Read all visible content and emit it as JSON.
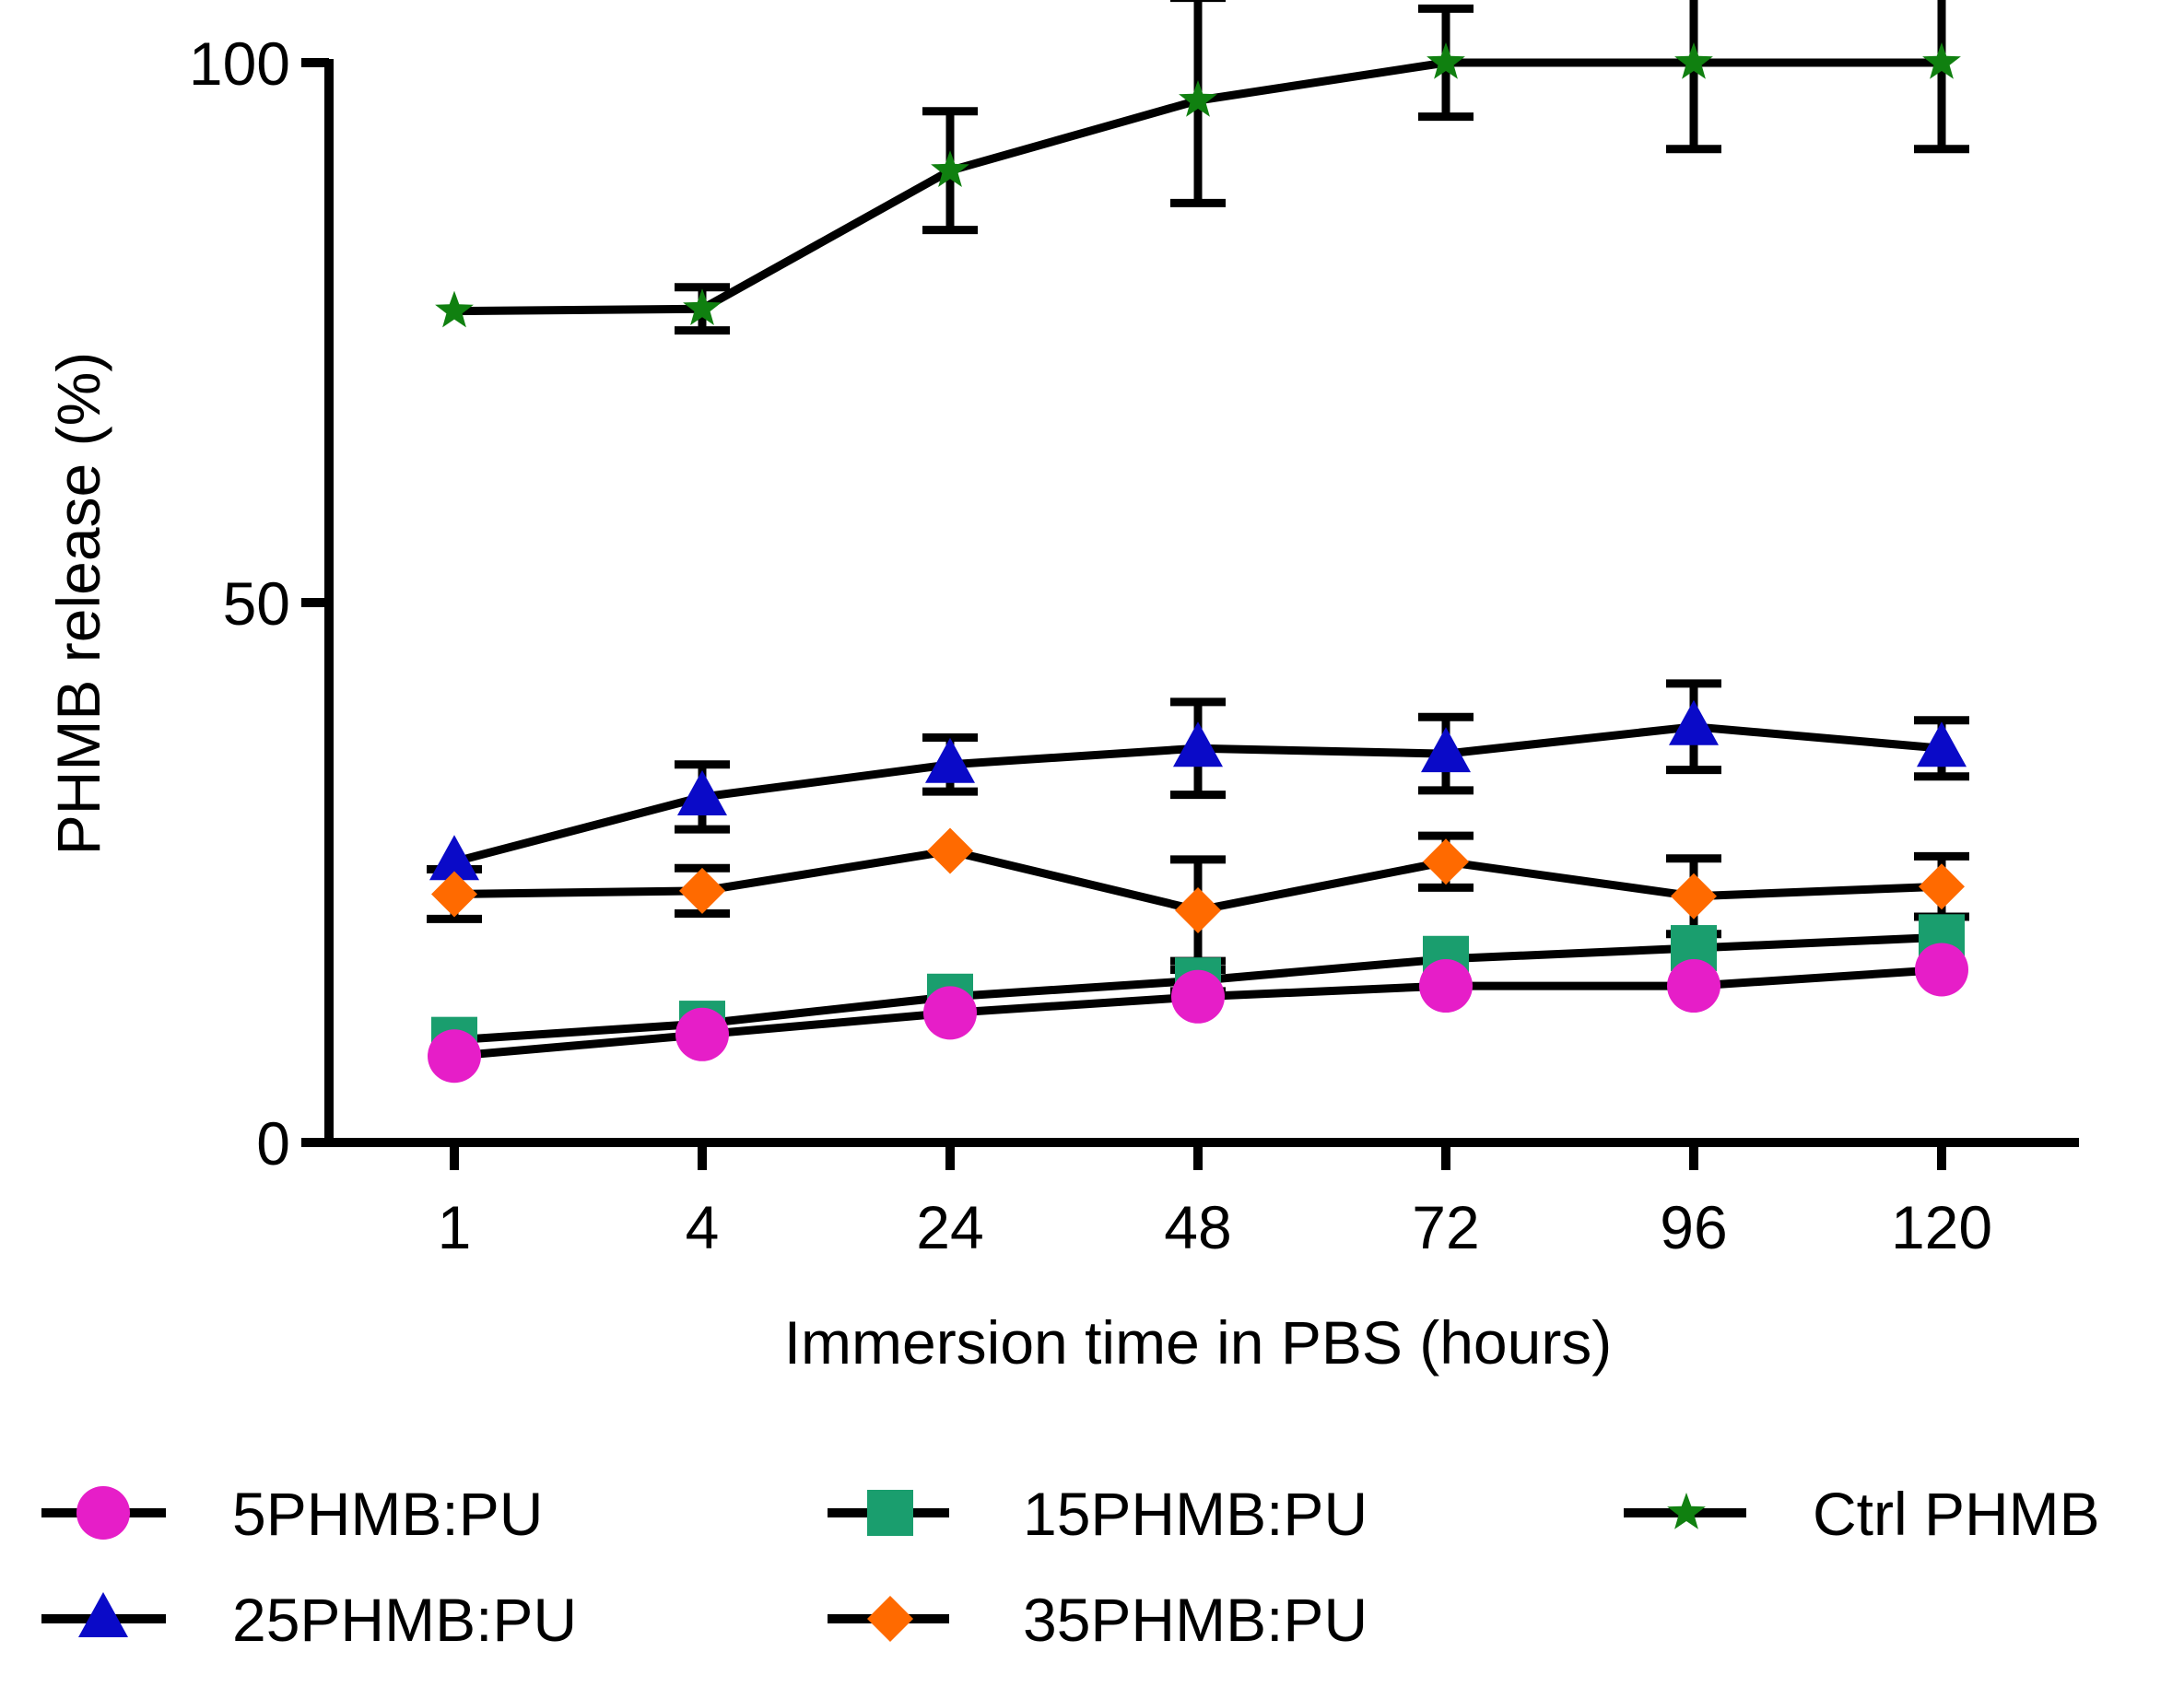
{
  "chart_data": {
    "type": "line",
    "title": "",
    "xlabel": "Immersion time in PBS (hours)",
    "ylabel": "PHMB release (%)",
    "categories": [
      "1",
      "4",
      "24",
      "48",
      "72",
      "96",
      "120"
    ],
    "y_ticks": [
      "0",
      "50",
      "100"
    ],
    "ylim": [
      0,
      100
    ],
    "x_scale": "categorical",
    "grid": false,
    "legend_position": "bottom",
    "error_bars": true,
    "series": [
      {
        "name": "5PHMB:PU",
        "marker": "circle",
        "color": "#e61ec8",
        "values": [
          8,
          10,
          12,
          13.5,
          14.5,
          14.5,
          16
        ],
        "errors": [
          0,
          0,
          0,
          0,
          0,
          0,
          0
        ]
      },
      {
        "name": "15PHMB:PU",
        "marker": "square",
        "color": "#1a9e6e",
        "values": [
          9.5,
          11,
          13.5,
          15,
          17,
          18,
          19
        ],
        "errors": [
          0,
          0,
          0,
          1,
          0,
          0,
          0
        ]
      },
      {
        "name": "Ctrl PHMB",
        "marker": "star",
        "color": "#108010",
        "values": [
          77,
          77.2,
          90,
          96.5,
          100,
          100,
          100
        ],
        "errors": [
          0,
          2,
          5.5,
          9.5,
          5,
          8,
          8
        ]
      },
      {
        "name": "25PHMB:PU",
        "marker": "triangle",
        "color": "#0a0ac8",
        "values": [
          26,
          32,
          35,
          36.5,
          36,
          38.5,
          36.5
        ],
        "errors": [
          0,
          3,
          2.5,
          4.3,
          3.4,
          4,
          2.6
        ]
      },
      {
        "name": "35PHMB:PU",
        "marker": "diamond",
        "color": "#ff6a00",
        "values": [
          23,
          23.3,
          27,
          21.5,
          26,
          22.8,
          23.7
        ],
        "errors": [
          2.3,
          2.1,
          0,
          4.7,
          2.4,
          3.5,
          2.8
        ]
      }
    ]
  }
}
